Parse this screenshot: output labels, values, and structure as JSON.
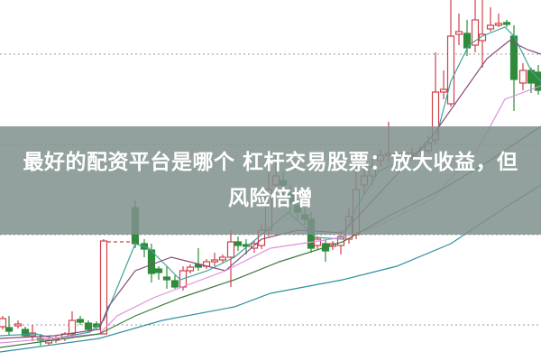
{
  "article": {
    "title": "最好的配资平台是哪个 杠杆交易股票：放大收益，但风险倍增"
  },
  "chart": {
    "up_color": "#d0404a",
    "down_color": "#2e8b3a",
    "gridline_style": "dotted",
    "moving_average_colors": [
      "#3fa39a",
      "#8a4a7a",
      "#e08fe0",
      "#3d7a3d",
      "#2f8f9f"
    ]
  }
}
